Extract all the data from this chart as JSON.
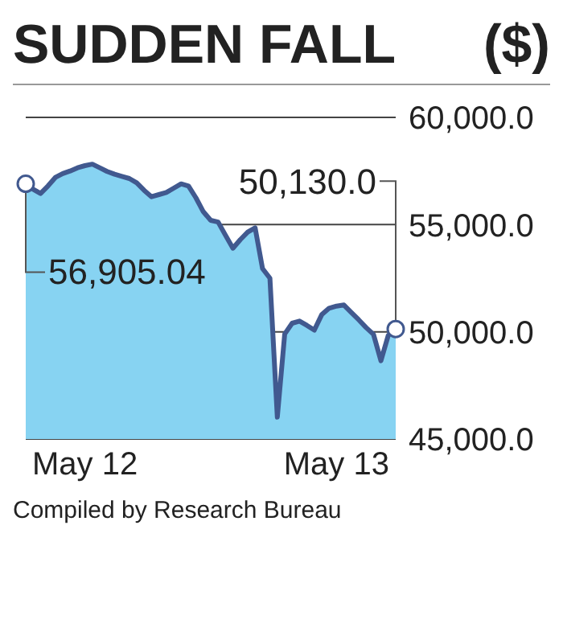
{
  "chart_data": {
    "type": "area",
    "title": "SUDDEN FALL",
    "ylabel": "($)",
    "categories": [
      null,
      null,
      null,
      null,
      null,
      null,
      null,
      null,
      "May 12",
      null,
      null,
      null,
      null,
      null,
      null,
      null,
      null,
      null,
      null,
      null,
      null,
      null,
      null,
      null,
      null,
      null,
      null,
      null,
      null,
      null,
      null,
      null,
      null,
      null,
      null,
      null,
      null,
      null,
      null,
      null,
      null,
      null,
      "May 13",
      null,
      null,
      null,
      null,
      null,
      null,
      null,
      null
    ],
    "series": [
      {
        "color": "#41598f",
        "values": [
          56905.04,
          56650,
          56450,
          56800,
          57200,
          57380,
          57500,
          57650,
          57750,
          57820,
          57650,
          57480,
          57350,
          57250,
          57150,
          56950,
          56600,
          56300,
          56400,
          56500,
          56700,
          56900,
          56800,
          56250,
          55600,
          55200,
          55120,
          54500,
          53900,
          54300,
          54650,
          54850,
          52950,
          52500,
          46020,
          49900,
          50400,
          50500,
          50300,
          50080,
          50800,
          51100,
          51200,
          51250,
          50900,
          50560,
          50200,
          49880,
          48650,
          49840,
          50130
        ]
      }
    ],
    "ylim": [
      45000,
      60000
    ],
    "yticks": [
      {
        "value": 45000,
        "label": "45,000.0"
      },
      {
        "value": 50000,
        "label": "50,000.0"
      },
      {
        "value": 55000,
        "label": "55,000.0"
      },
      {
        "value": 60000,
        "label": "60,000.0"
      }
    ],
    "grid": "y",
    "legend": false,
    "marker": "none",
    "annotations": [
      {
        "text": "56,905.04",
        "y": 56905.04
      },
      "50,130.0",
      "Compiled by Research Bureau"
    ]
  }
}
